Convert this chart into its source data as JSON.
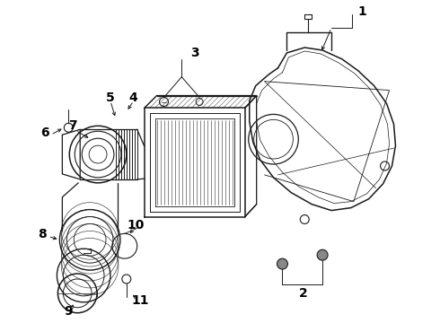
{
  "background_color": "#ffffff",
  "line_color": "#1a1a1a",
  "label_color": "#000000",
  "label_fontsize": 10,
  "figsize": [
    4.9,
    3.6
  ],
  "dpi": 100
}
